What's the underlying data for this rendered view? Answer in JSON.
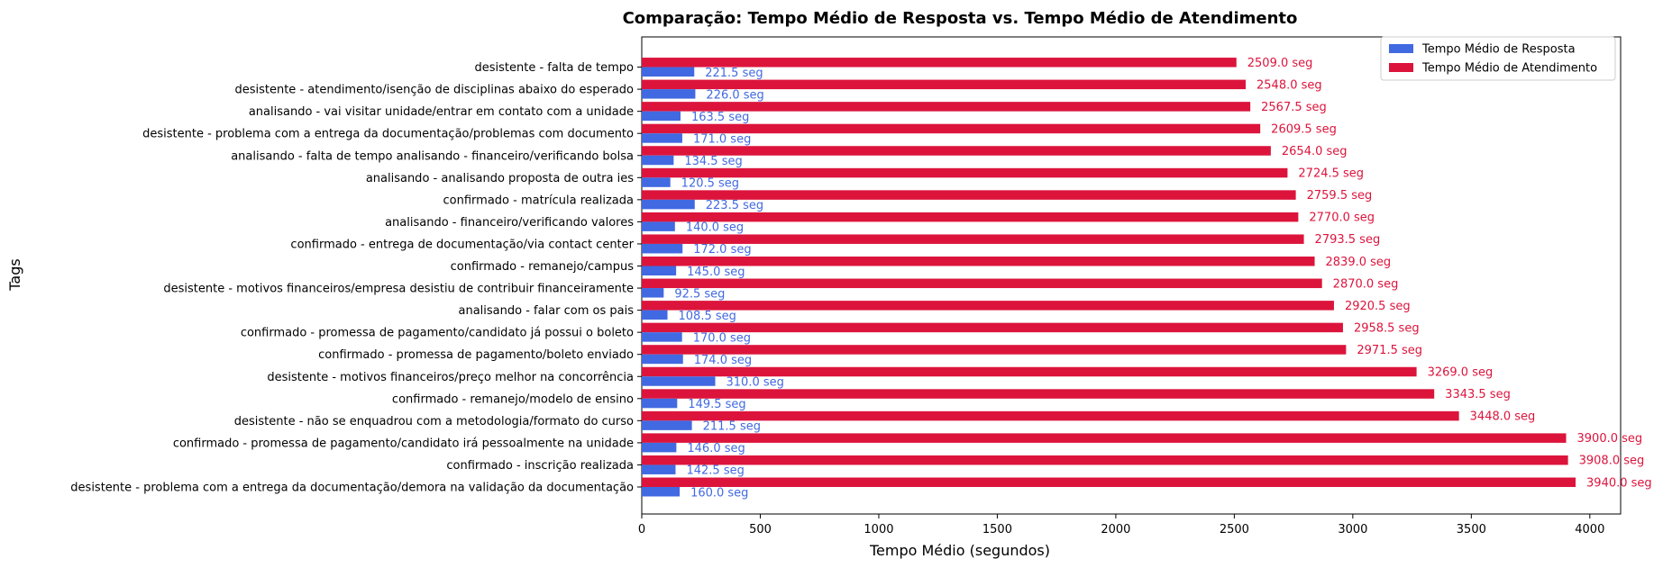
{
  "chart_data": {
    "type": "bar",
    "orientation": "horizontal",
    "title": "Comparação: Tempo Médio de Resposta vs. Tempo Médio de Atendimento",
    "xlabel": "Tempo Médio (segundos)",
    "ylabel": "Tags",
    "xlim": [
      0,
      4130
    ],
    "x_ticks": [
      0,
      500,
      1000,
      1500,
      2000,
      2500,
      3000,
      3500,
      4000
    ],
    "grid": false,
    "legend_position": "top-right",
    "value_suffix": " seg",
    "categories": [
      "desistente - falta de tempo",
      "desistente - atendimento/isenção de disciplinas abaixo do esperado",
      "analisando - vai visitar unidade/entrar em contato com a unidade",
      "desistente - problema com a entrega da documentação/problemas com documento",
      "analisando - falta de tempo analisando - financeiro/verificando bolsa",
      "analisando - analisando proposta de outra ies",
      "confirmado - matrícula realizada",
      "analisando - financeiro/verificando valores",
      "confirmado - entrega de documentação/via contact center",
      "confirmado - remanejo/campus",
      "desistente - motivos financeiros/empresa desistiu de contribuir financeiramente",
      "analisando - falar com os pais",
      "confirmado - promessa de pagamento/candidato já possui o boleto",
      "confirmado - promessa de pagamento/boleto enviado",
      "desistente - motivos financeiros/preço melhor na concorrência",
      "confirmado - remanejo/modelo de ensino",
      "desistente - não se enquadrou com a metodologia/formato do curso",
      "confirmado - promessa de pagamento/candidato irá pessoalmente na unidade",
      "confirmado - inscrição realizada",
      "desistente - problema com a entrega da documentação/demora na validação da documentação"
    ],
    "series": [
      {
        "name": "Tempo Médio de Resposta",
        "color": "#4169e1",
        "values": [
          221.5,
          226.0,
          163.5,
          171.0,
          134.5,
          120.5,
          223.5,
          140.0,
          172.0,
          145.0,
          92.5,
          108.5,
          170.0,
          174.0,
          310.0,
          149.5,
          211.5,
          146.0,
          142.5,
          160.0
        ]
      },
      {
        "name": "Tempo Médio de Atendimento",
        "color": "#dc143c",
        "values": [
          2509.0,
          2548.0,
          2567.5,
          2609.5,
          2654.0,
          2724.5,
          2759.5,
          2770.0,
          2793.5,
          2839.0,
          2870.0,
          2920.5,
          2958.5,
          2971.5,
          3269.0,
          3343.5,
          3448.0,
          3900.0,
          3908.0,
          3940.0
        ]
      }
    ]
  }
}
